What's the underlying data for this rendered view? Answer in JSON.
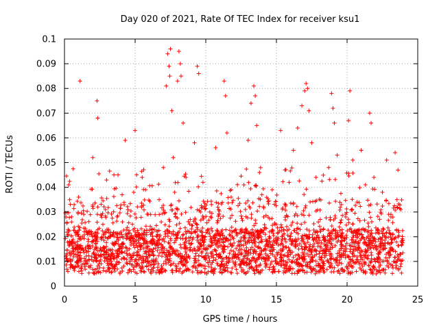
{
  "chart_data": {
    "type": "scatter",
    "title": "Day 020 of 2021, Rate Of TEC Index for receiver ksu1",
    "xlabel": "GPS time / hours",
    "ylabel": "ROTI / TECUs",
    "xlim": [
      0,
      25
    ],
    "ylim": [
      0,
      0.1
    ],
    "x_ticks": [
      "0",
      "5",
      "10",
      "15",
      "20",
      "25"
    ],
    "y_ticks": [
      "0",
      "0.01",
      "0.02",
      "0.03",
      "0.04",
      "0.05",
      "0.06",
      "0.07",
      "0.08",
      "0.09",
      "0.1"
    ],
    "grid": true,
    "marker": "+",
    "color": "#ff0000",
    "series": [
      {
        "x": [
          0.1,
          0.3,
          0.5,
          0.8,
          1.0,
          1.1,
          1.4,
          1.7,
          2.0,
          2.3,
          2.35,
          2.6,
          2.9,
          3.2,
          3.5,
          3.8,
          4.1,
          4.3,
          4.6,
          4.9,
          5.0,
          5.2,
          5.5,
          5.8,
          6.1,
          6.4,
          6.7,
          7.0,
          7.2,
          7.3,
          7.4,
          7.45,
          7.5,
          7.6,
          7.7,
          7.8,
          8.0,
          8.1,
          8.2,
          8.25,
          8.4,
          8.6,
          8.9,
          9.2,
          9.4,
          9.5,
          9.8,
          10.1,
          10.4,
          10.7,
          11.0,
          11.3,
          11.4,
          11.5,
          11.8,
          12.1,
          12.4,
          12.7,
          13.0,
          13.2,
          13.4,
          13.5,
          13.6,
          13.8,
          14.1,
          14.4,
          14.7,
          15.0,
          15.3,
          15.6,
          15.9,
          16.2,
          16.5,
          16.8,
          17.0,
          17.1,
          17.2,
          17.3,
          17.5,
          17.8,
          18.1,
          18.4,
          18.7,
          18.9,
          19.0,
          19.1,
          19.3,
          19.6,
          19.9,
          20.1,
          20.2,
          20.4,
          20.7,
          21.0,
          21.3,
          21.6,
          21.7,
          21.9,
          22.2,
          22.5,
          22.8,
          23.1,
          23.4,
          23.6,
          23.8
        ],
        "y": [
          0.012,
          0.041,
          0.028,
          0.015,
          0.036,
          0.083,
          0.022,
          0.014,
          0.052,
          0.075,
          0.068,
          0.019,
          0.031,
          0.011,
          0.045,
          0.017,
          0.026,
          0.059,
          0.013,
          0.038,
          0.063,
          0.021,
          0.044,
          0.012,
          0.029,
          0.017,
          0.035,
          0.048,
          0.081,
          0.094,
          0.089,
          0.085,
          0.096,
          0.071,
          0.052,
          0.038,
          0.083,
          0.095,
          0.09,
          0.085,
          0.066,
          0.044,
          0.027,
          0.058,
          0.089,
          0.086,
          0.042,
          0.015,
          0.033,
          0.056,
          0.021,
          0.083,
          0.077,
          0.062,
          0.039,
          0.013,
          0.018,
          0.041,
          0.059,
          0.074,
          0.081,
          0.077,
          0.065,
          0.046,
          0.028,
          0.016,
          0.039,
          0.025,
          0.063,
          0.019,
          0.042,
          0.055,
          0.064,
          0.073,
          0.079,
          0.082,
          0.08,
          0.071,
          0.058,
          0.044,
          0.027,
          0.019,
          0.048,
          0.078,
          0.072,
          0.066,
          0.053,
          0.033,
          0.028,
          0.067,
          0.079,
          0.051,
          0.034,
          0.055,
          0.041,
          0.07,
          0.066,
          0.044,
          0.023,
          0.038,
          0.051,
          0.029,
          0.054,
          0.047,
          0.031
        ]
      }
    ]
  }
}
